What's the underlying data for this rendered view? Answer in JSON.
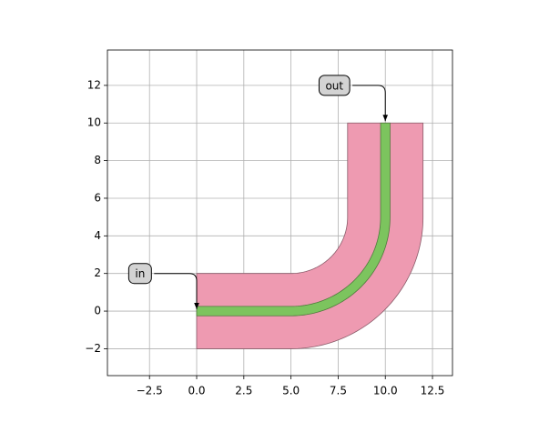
{
  "chart_data": {
    "type": "waveguide",
    "xlim": [
      -4.73,
      13.56
    ],
    "ylim": [
      -3.43,
      13.88
    ],
    "xticks": [
      {
        "value": -2.5,
        "label": "−2.5"
      },
      {
        "value": 0,
        "label": "0.0"
      },
      {
        "value": 2.5,
        "label": "2.5"
      },
      {
        "value": 5,
        "label": "5.0"
      },
      {
        "value": 7.5,
        "label": "7.5"
      },
      {
        "value": 10,
        "label": "10.0"
      },
      {
        "value": 12.5,
        "label": "12.5"
      }
    ],
    "yticks": [
      {
        "value": -2,
        "label": "−2"
      },
      0,
      2,
      4,
      6,
      8,
      10,
      12
    ],
    "grid": true,
    "waveguide": {
      "start": [
        0,
        0
      ],
      "straight_length": 5,
      "bend_radius": 5,
      "end": [
        10,
        10
      ],
      "core_width": 0.5,
      "cladding_width": 4,
      "core_color": "#7cc45e",
      "cladding_color": "#ee9ab1"
    },
    "annotations": [
      {
        "text": "in",
        "xy": [
          0,
          0
        ],
        "xytext": [
          -3,
          2
        ]
      },
      {
        "text": "out",
        "xy": [
          10,
          10
        ],
        "xytext": [
          7.3,
          12
        ]
      }
    ]
  }
}
